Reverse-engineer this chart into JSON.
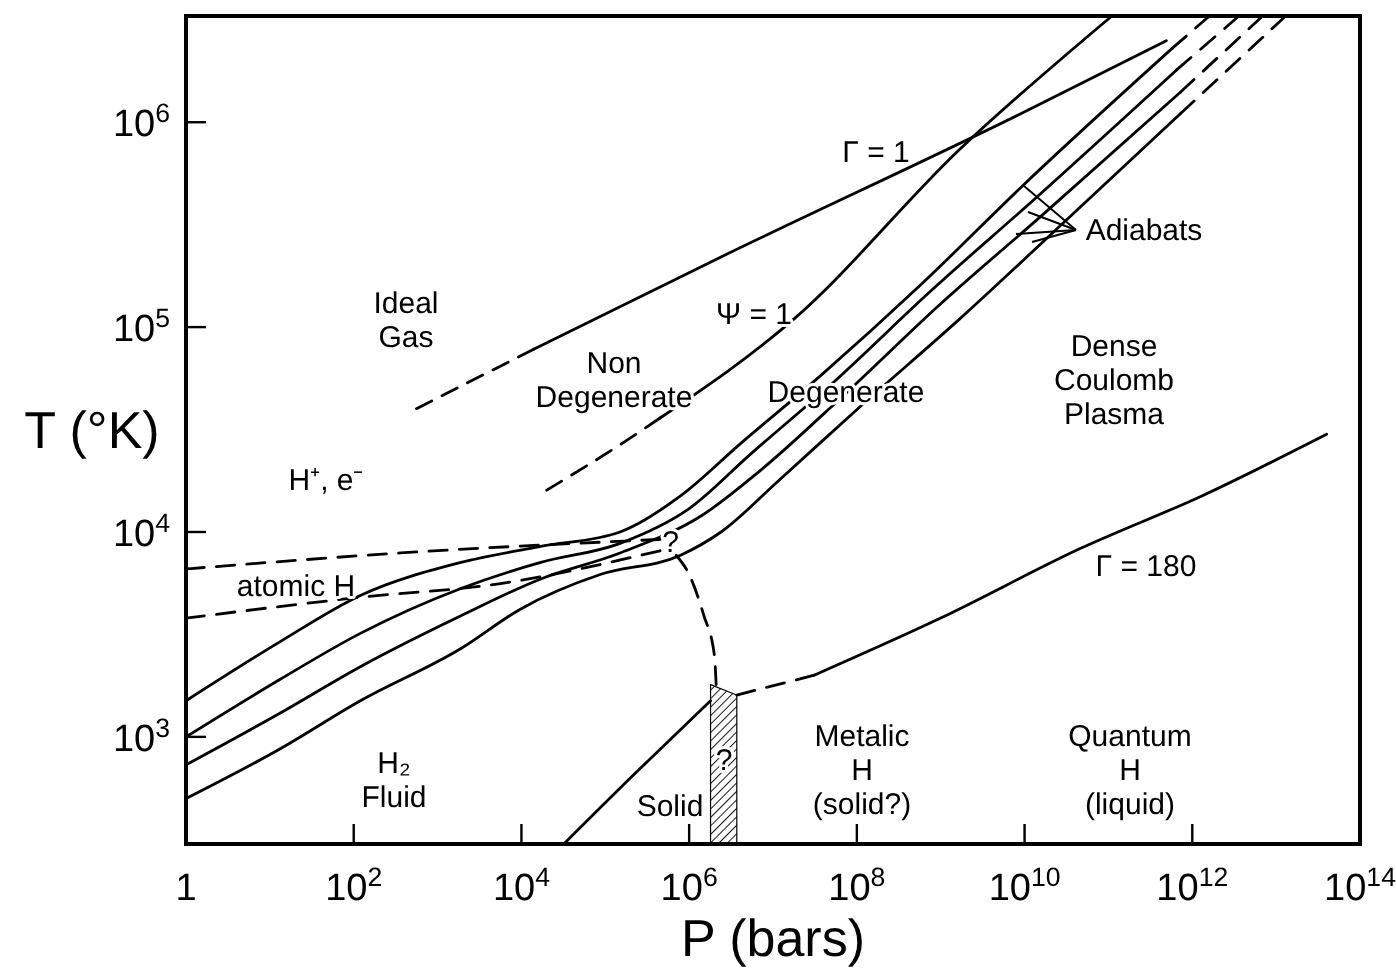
{
  "chart_data": {
    "type": "line",
    "xlabel": "P  (bars)",
    "ylabel": "T  (°K)",
    "log": "xy",
    "xlim": [
      1,
      100000000000000.0
    ],
    "ylim": [
      300,
      3300000.0
    ],
    "xticks": [
      1,
      {
        "value": 100,
        "label": "10$^{2}$"
      },
      {
        "value": 10000,
        "label": "10$^{4}$"
      },
      {
        "value": 1000000.0,
        "label": "10$^{6}$"
      },
      {
        "value": 100000000.0,
        "label": "10$^{8}$"
      },
      {
        "value": 10000000000.0,
        "label": "10$^{10}$"
      },
      {
        "value": 1000000000000.0,
        "label": "10$^{12}$"
      },
      {
        "value": 100000000000000.0,
        "label": "10$^{14}$"
      }
    ],
    "yticks": [
      {
        "value": 1000,
        "label": "10$^{3}$"
      },
      {
        "value": 10000,
        "label": "10$^{4}$"
      },
      {
        "value": 100000,
        "label": "10$^{5}$"
      },
      {
        "value": 1000000.0,
        "label": "10$^{6}$"
      }
    ],
    "series": [
      {
        "color": "#000000",
        "line_style": "dashed",
        "x": [
          560,
          14000
        ],
        "values": [
          40000,
          78000
        ]
      },
      {
        "color": "#000000",
        "line_style": "solid",
        "x": [
          14000,
          2400000.0,
          9000000000.0,
          490000000000.0
        ],
        "values": [
          78000,
          220000,
          1100000.0,
          2500000.0
        ]
      },
      {
        "type": "line",
        "color": "#000000",
        "line_style": "dashed",
        "x": [
          20000,
          180000,
          450000
        ],
        "values": [
          16000,
          28000,
          36000
        ]
      },
      {
        "type": "line",
        "color": "#000000",
        "line_style": "solid",
        "x": [
          450000,
          18000000.0,
          1700000000.0,
          110000000000.0
        ],
        "values": [
          36000,
          110000,
          740000,
          3300000.0
        ]
      },
      {
        "type": "line",
        "color": "#000000",
        "line_style": "solid",
        "x": [
          1,
          13,
          120,
          1900,
          17000,
          150000,
          790000,
          4100000.0,
          37000000.0,
          570000000.0,
          10000000000.0,
          580000000000.0
        ],
        "values": [
          1500,
          2900,
          4900,
          7100,
          8500,
          10000,
          15000,
          27000,
          58000,
          160000,
          500000,
          2300000.0
        ]
      },
      {
        "type": "line",
        "color": "#000000",
        "line_style": "dashed",
        "x": [
          580000000000.0,
          1600000000000.0
        ],
        "values": [
          2300000.0,
          3300000.0
        ]
      },
      {
        "type": "line",
        "color": "#000000",
        "line_style": "solid",
        "x": [
          1,
          13,
          120,
          1900,
          17000,
          150000,
          1000000.0,
          5400000.0,
          48000000.0,
          760000000.0,
          13000000000.0,
          650000000000.0
        ],
        "values": [
          1000,
          1900,
          3200,
          5300,
          7100,
          8800,
          13000,
          24000,
          52000,
          150000,
          420000,
          1800000.0
        ]
      },
      {
        "type": "line",
        "color": "#000000",
        "line_style": "dashed",
        "x": [
          650000000000.0,
          3600000000000.0
        ],
        "values": [
          1800000.0,
          3300000.0
        ]
      },
      {
        "type": "line",
        "color": "#000000",
        "line_style": "solid",
        "x": [
          1,
          13,
          120,
          1900,
          17000,
          150000,
          1400000.0,
          7100000.0,
          64000000.0,
          1000000000.0,
          16000000000.0,
          720000000000.0
        ],
        "values": [
          730,
          1300,
          2200,
          3900,
          5900,
          7900,
          12000,
          20000,
          45000,
          130000,
          350000,
          1400000.0
        ]
      },
      {
        "type": "line",
        "color": "#000000",
        "line_style": "dashed",
        "x": [
          720000000000.0,
          6900000000000.0
        ],
        "values": [
          1400000.0,
          3300000.0
        ]
      },
      {
        "type": "line",
        "color": "#000000",
        "line_style": "solid",
        "x": [
          1,
          13,
          120,
          1900,
          9700,
          87000,
          790000,
          2400000.0,
          12000000.0,
          110000000.0,
          1700000000.0,
          20000000000.0,
          720000000000.0
        ],
        "values": [
          500,
          870,
          1500,
          2700,
          4200,
          6200,
          7700,
          10000,
          18000,
          41000,
          110000,
          280000,
          1100000.0
        ]
      },
      {
        "type": "line",
        "color": "#000000",
        "line_style": "dashed",
        "x": [
          720000000000.0,
          13000000000000.0
        ],
        "values": [
          1100000.0,
          3300000.0
        ]
      },
      {
        "type": "line",
        "color": "#000000",
        "line_style": "dashed",
        "x": [
          1,
          360,
          450000
        ],
        "values": [
          6600,
          7900,
          9200
        ]
      },
      {
        "type": "line",
        "color": "#000000",
        "line_style": "dashed",
        "x": [
          1,
          120,
          5600,
          450000
        ],
        "values": [
          3800,
          4800,
          5600,
          8100
        ]
      },
      {
        "type": "line",
        "color": "#000000",
        "line_style": "dashed",
        "x": [
          700000,
          1000000.0,
          1500000.0,
          2000000.0,
          2100000.0
        ],
        "values": [
          7700,
          6200,
          3900,
          2500,
          1800
        ]
      },
      {
        "type": "line",
        "color": "#000000",
        "line_style": "solid",
        "x": [
          32000,
          260000,
          1800000.0
        ],
        "values": [
          300,
          700,
          1500
        ]
      },
      {
        "type": "line",
        "color": "#000000",
        "line_style": "dashed",
        "x": [
          3700000.0,
          31000000.0
        ],
        "values": [
          1600,
          2000
        ]
      },
      {
        "type": "line",
        "color": "#000000",
        "line_style": "solid",
        "x": [
          31000000.0,
          1000000000.0,
          46000000000.0,
          1300000000000.0,
          40000000000000.0
        ],
        "values": [
          2000,
          3800,
          8300,
          15000,
          30000
        ]
      },
      {
        "type": "area",
        "color": "#000000",
        "x": [
          1800000.0,
          3700000.0
        ],
        "values": [
          1800,
          1600
        ]
      }
    ],
    "annotations": [
      "Ideal\nGas",
      "Non\nDegenerate",
      "Degenerate",
      "Dense\nCoulomb\nPlasma",
      "H⁺, e⁻",
      "atomic  H",
      "H₂\nFluid",
      "Solid",
      "Metalic\nH\n(solid?)",
      "Quantum\nH\n(liquid)",
      "Γ = 180",
      "Γ = 1",
      "Ψ = 1",
      "Adiabats",
      "?",
      {
        "text": "?",
        "x": 600000,
        "y": 8900
      }
    ]
  }
}
